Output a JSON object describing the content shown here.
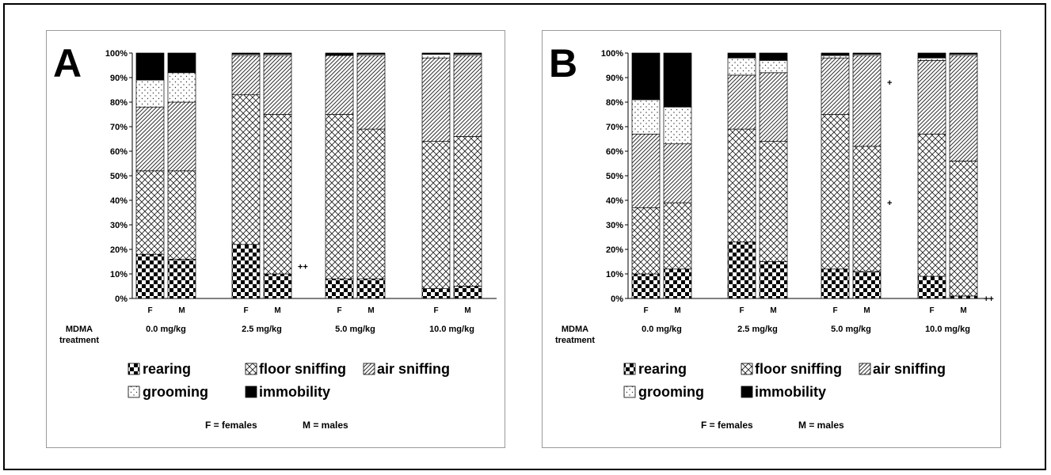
{
  "chart_data": [
    {
      "type": "bar",
      "stacked": true,
      "panel_label": "A",
      "categories": [
        "F",
        "M",
        "F",
        "M",
        "F",
        "M",
        "F",
        "M"
      ],
      "groups": [
        "0.0 mg/kg",
        "2.5 mg/kg",
        "5.0 mg/kg",
        "10.0 mg/kg"
      ],
      "group_axis_label_line1": "MDMA",
      "group_axis_label_line2": "treatment",
      "yticks": [
        "0%",
        "10%",
        "20%",
        "30%",
        "40%",
        "50%",
        "60%",
        "70%",
        "80%",
        "90%",
        "100%"
      ],
      "ylim": [
        0,
        100
      ],
      "series": [
        {
          "name": "rearing",
          "values": [
            18,
            16,
            22,
            10,
            8,
            8,
            4,
            5
          ]
        },
        {
          "name": "floor sniffing",
          "values": [
            34,
            36,
            61,
            65,
            67,
            61,
            60,
            61
          ]
        },
        {
          "name": "air sniffing",
          "values": [
            26,
            28,
            16,
            24,
            24,
            30,
            34,
            33
          ]
        },
        {
          "name": "grooming",
          "values": [
            11,
            12,
            0.5,
            0.5,
            0,
            0.5,
            1.5,
            0.5
          ]
        },
        {
          "name": "immobility",
          "values": [
            11,
            8,
            0.5,
            0.5,
            1,
            0.5,
            0.5,
            0.5
          ]
        }
      ],
      "annotations": [
        {
          "text": "++",
          "after_bar": 3,
          "at_percent": 13
        }
      ]
    },
    {
      "type": "bar",
      "stacked": true,
      "panel_label": "B",
      "categories": [
        "F",
        "M",
        "F",
        "M",
        "F",
        "M",
        "F",
        "M"
      ],
      "groups": [
        "0.0 mg/kg",
        "2.5 mg/kg",
        "5.0 mg/kg",
        "10.0 mg/kg"
      ],
      "group_axis_label_line1": "MDMA",
      "group_axis_label_line2": "treatment",
      "yticks": [
        "0%",
        "10%",
        "20%",
        "30%",
        "40%",
        "50%",
        "60%",
        "70%",
        "80%",
        "90%",
        "100%"
      ],
      "ylim": [
        0,
        100
      ],
      "series": [
        {
          "name": "rearing",
          "values": [
            10,
            12,
            23,
            15,
            12,
            11,
            9,
            1
          ]
        },
        {
          "name": "floor sniffing",
          "values": [
            27,
            27,
            46,
            49,
            63,
            51,
            58,
            55
          ]
        },
        {
          "name": "air sniffing",
          "values": [
            30,
            24,
            22,
            28,
            23,
            37,
            30,
            43
          ]
        },
        {
          "name": "grooming",
          "values": [
            14,
            15,
            7,
            5,
            1,
            0.5,
            1,
            0.5
          ]
        },
        {
          "name": "immobility",
          "values": [
            19,
            22,
            2,
            3,
            1,
            0.5,
            2,
            0.5
          ]
        }
      ],
      "annotations": [
        {
          "text": "+",
          "after_bar": 5,
          "at_percent": 88
        },
        {
          "text": "+",
          "after_bar": 5,
          "at_percent": 39
        },
        {
          "text": "++",
          "after_bar": 7,
          "at_percent": 0
        }
      ]
    }
  ],
  "legend": {
    "rearing": "rearing",
    "floor_sniffing": "floor sniffing",
    "air_sniffing": "air sniffing",
    "grooming": "grooming",
    "immobility": "immobility"
  },
  "note": {
    "females": "F = females",
    "males": "M = males"
  }
}
